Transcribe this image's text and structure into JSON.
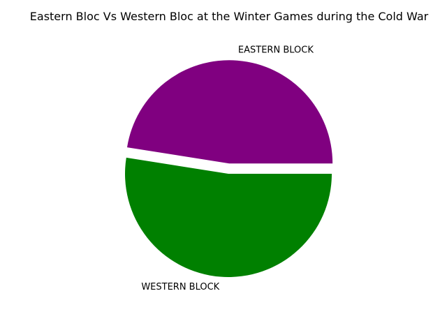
{
  "chart_data": {
    "type": "pie",
    "title": "Eastern Bloc Vs Western Bloc at the Winter Games during the Cold War",
    "slices": [
      {
        "label": "EASTERN BLOCK",
        "value": 47.5,
        "color": "#800080",
        "exploded": true
      },
      {
        "label": "WESTERN BLOCK",
        "value": 52.5,
        "color": "#008000",
        "exploded": false
      }
    ],
    "start_angle_deg": 0,
    "direction": "counterclockwise",
    "legend": "none"
  }
}
